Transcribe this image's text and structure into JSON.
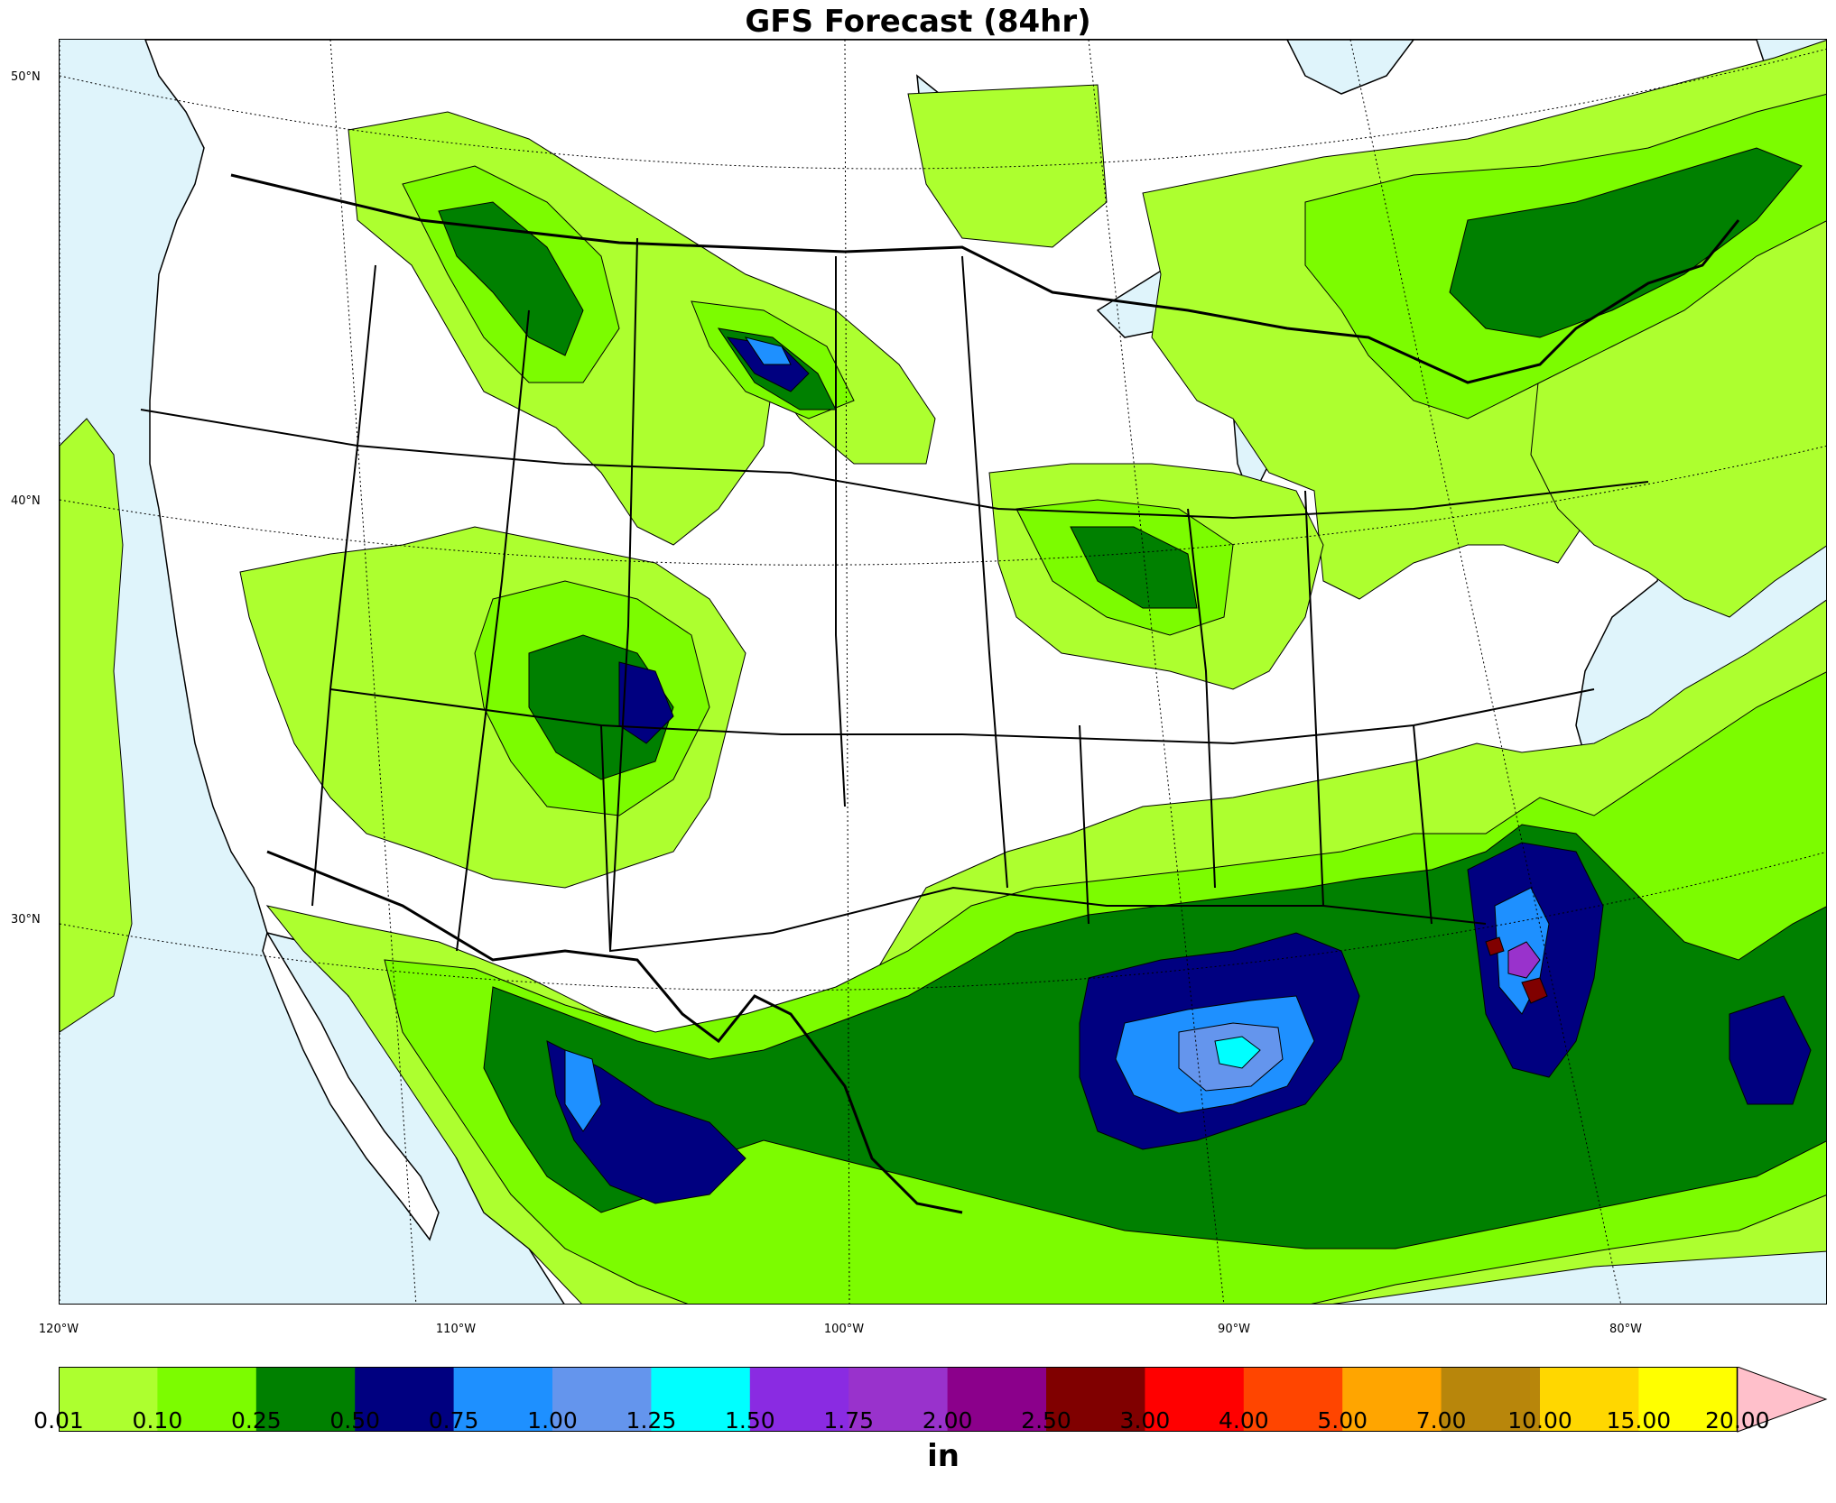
{
  "title": "GFS Forecast (84hr)",
  "latitude_labels": [
    "50°N",
    "40°N",
    "30°N"
  ],
  "longitude_labels": [
    "120°W",
    "110°W",
    "100°W",
    "90°W",
    "80°W"
  ],
  "colorbar": {
    "units": "in",
    "tick_labels": [
      "0.01",
      "0.10",
      "0.25",
      "0.50",
      "0.75",
      "1.00",
      "1.25",
      "1.50",
      "1.75",
      "2.00",
      "2.50",
      "3.00",
      "4.00",
      "5.00",
      "7.00",
      "10.00",
      "15.00",
      "20.00"
    ],
    "colors": [
      "#adff2f",
      "#7cfc00",
      "#008000",
      "#000080",
      "#1e90ff",
      "#6495ed",
      "#00ffff",
      "#8a2be2",
      "#9932cc",
      "#8b008b",
      "#800000",
      "#ff0000",
      "#ff4500",
      "#ffa500",
      "#b8860b",
      "#ffd700",
      "#ffff00"
    ],
    "extend_color": "#ffc0cb"
  },
  "map": {
    "ocean_color": "#dff4fb",
    "land_color": "#ffffff",
    "field": "precipitation",
    "region": "Contiguous United States"
  }
}
